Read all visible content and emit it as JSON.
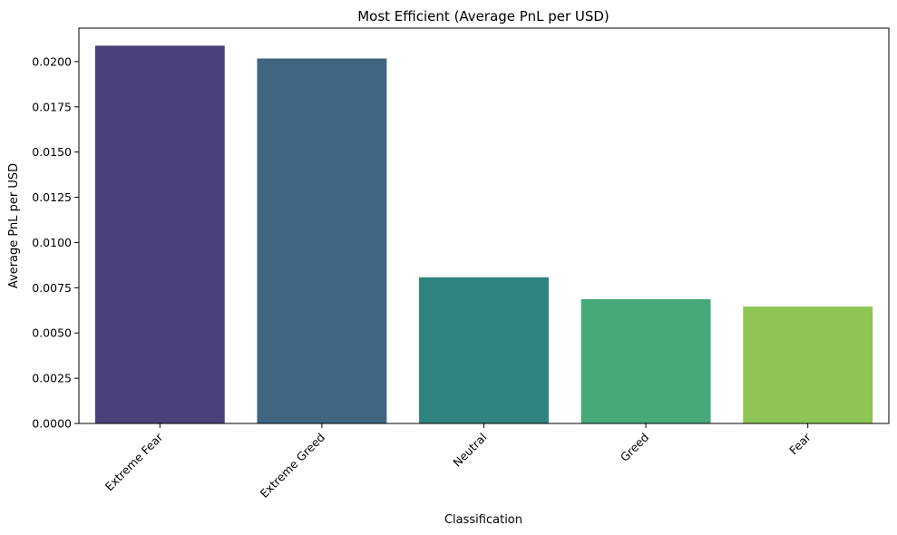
{
  "chart_data": {
    "type": "bar",
    "title": "Most Efficient (Average PnL per USD)",
    "xlabel": "Classification",
    "ylabel": "Average PnL per USD",
    "categories": [
      "Extreme Fear",
      "Extreme Greed",
      "Neutral",
      "Greed",
      "Fear"
    ],
    "values": [
      0.02088,
      0.02017,
      0.00808,
      0.00687,
      0.00646
    ],
    "colors": [
      "#4a417a",
      "#3e6680",
      "#2e847e",
      "#47a978",
      "#8ec554"
    ],
    "ylim": [
      0,
      0.02185
    ],
    "yticks": [
      "0.0000",
      "0.0025",
      "0.0050",
      "0.0075",
      "0.0100",
      "0.0125",
      "0.0150",
      "0.0175",
      "0.0200"
    ],
    "ytick_values": [
      0,
      0.0025,
      0.005,
      0.0075,
      0.01,
      0.0125,
      0.015,
      0.0175,
      0.02
    ],
    "grid": false,
    "legend": "none"
  }
}
